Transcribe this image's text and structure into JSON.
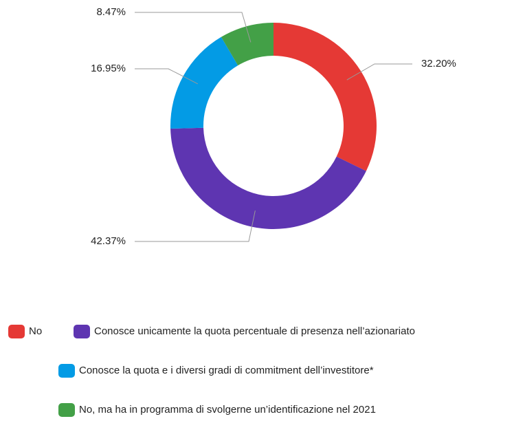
{
  "chart_data": {
    "type": "donut",
    "categories": [
      "No",
      "Conosce unicamente la quota percentuale di presenza nell’azionariato",
      "Conosce la quota e i diversi gradi di commitment dell’investitore*",
      "No, ma ha in programma di svolgerne un’identificazione nel 2021"
    ],
    "values": [
      32.2,
      42.37,
      16.95,
      8.47
    ],
    "value_labels": [
      "32.20%",
      "42.37%",
      "16.95%",
      "8.47%"
    ],
    "colors": [
      "#e53935",
      "#5e35b1",
      "#039be5",
      "#43a047"
    ],
    "legend": "bottom"
  }
}
